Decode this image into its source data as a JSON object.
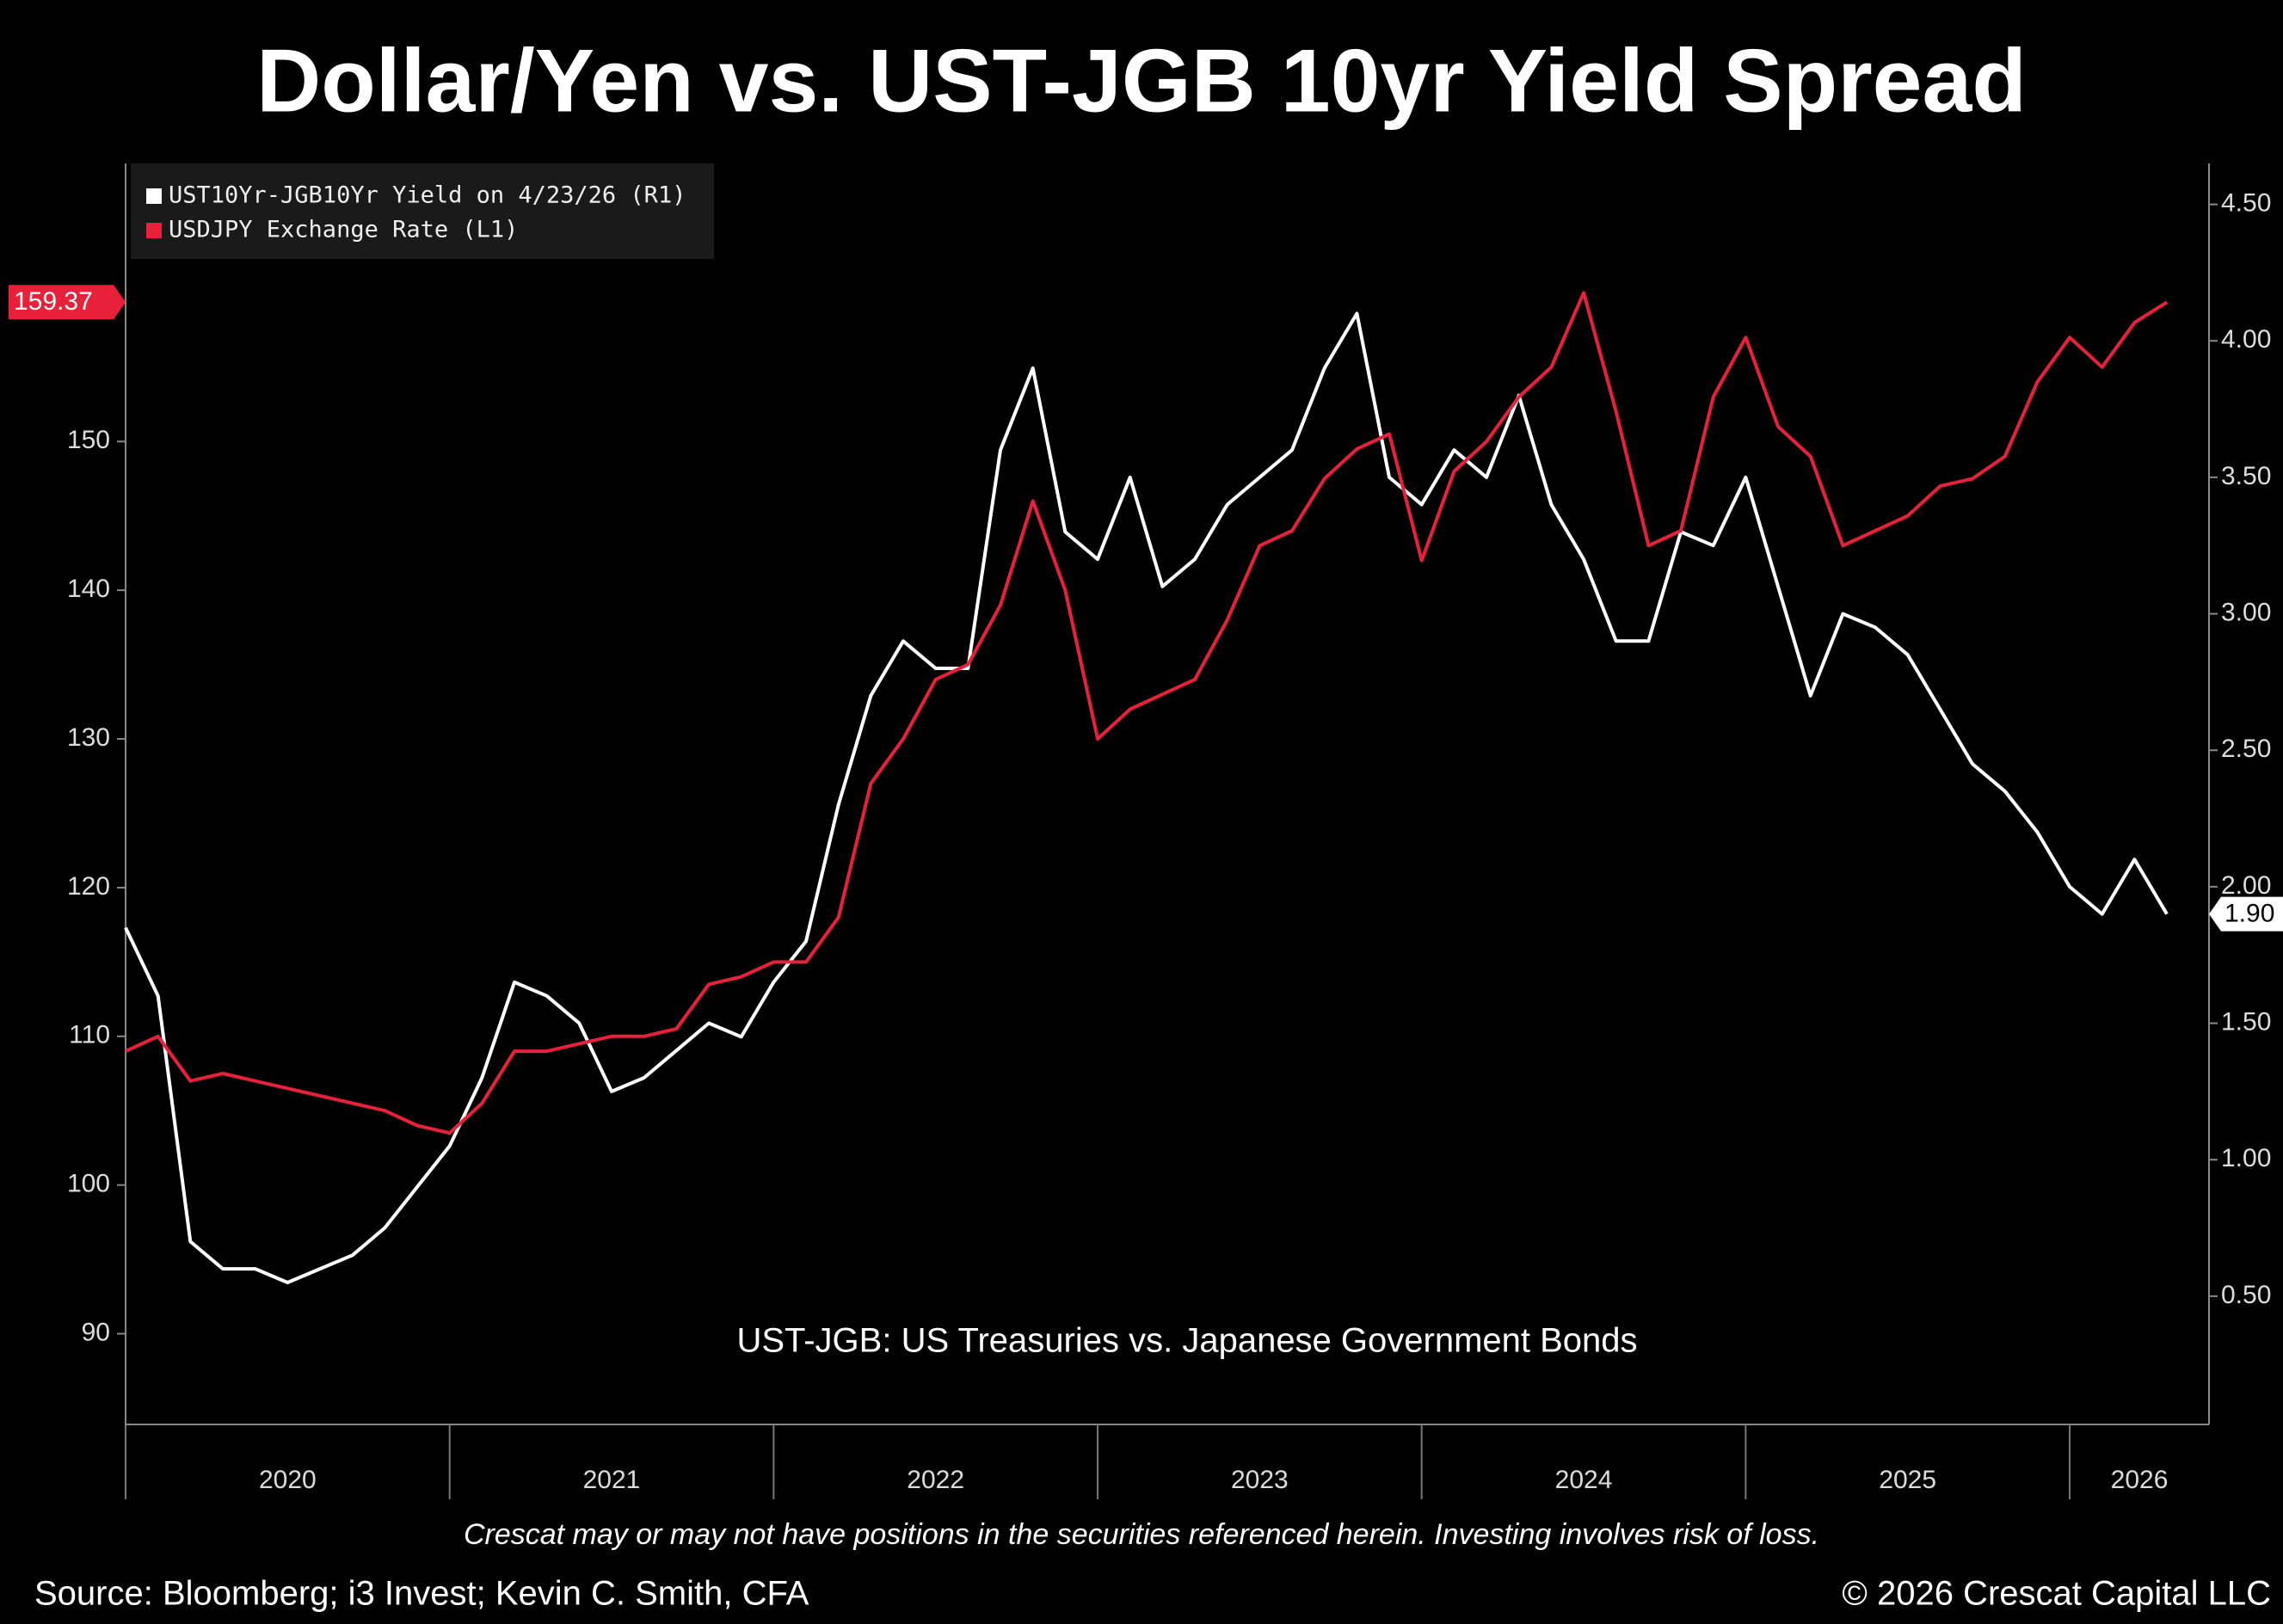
{
  "chart_data": {
    "type": "line",
    "title": "Dollar/Yen vs. UST-JGB 10yr Yield Spread",
    "annotation": "UST-JGB: US Treasuries vs. Japanese Government Bonds",
    "disclaimer": "Crescat may or may not have positions in the securities referenced herein. Investing involves risk of loss.",
    "source": "Source: Bloomberg; i3 Invest; Kevin C. Smith, CFA",
    "copyright": "© 2026 Crescat Capital LLC",
    "x": [
      2020,
      2020.1,
      2020.2,
      2020.3,
      2020.4,
      2020.5,
      2020.6,
      2020.7,
      2020.8,
      2020.9,
      2021,
      2021.1,
      2021.2,
      2021.3,
      2021.4,
      2021.5,
      2021.6,
      2021.7,
      2021.8,
      2021.9,
      2022,
      2022.1,
      2022.2,
      2022.3,
      2022.4,
      2022.5,
      2022.6,
      2022.7,
      2022.8,
      2022.9,
      2023,
      2023.1,
      2023.2,
      2023.3,
      2023.4,
      2023.5,
      2023.6,
      2023.7,
      2023.8,
      2023.9,
      2024,
      2024.1,
      2024.2,
      2024.3,
      2024.4,
      2024.5,
      2024.6,
      2024.7,
      2024.8,
      2024.9,
      2025,
      2025.1,
      2025.2,
      2025.3,
      2025.4,
      2025.5,
      2025.6,
      2025.7,
      2025.8,
      2025.9,
      2026,
      2026.1,
      2026.2,
      2026.3
    ],
    "series": [
      {
        "name": "UST10Yr-JGB10Yr Yield on 4/23/26 (R1)",
        "color": "#ffffff",
        "axis": "y2",
        "last_value_label": "1.90",
        "values": [
          1.85,
          1.6,
          0.7,
          0.6,
          0.6,
          0.55,
          0.6,
          0.65,
          0.75,
          0.9,
          1.05,
          1.3,
          1.65,
          1.6,
          1.5,
          1.25,
          1.3,
          1.4,
          1.5,
          1.45,
          1.65,
          1.8,
          2.3,
          2.7,
          2.9,
          2.8,
          2.8,
          3.6,
          3.9,
          3.3,
          3.2,
          3.5,
          3.1,
          3.2,
          3.4,
          3.5,
          3.6,
          3.9,
          4.1,
          3.5,
          3.4,
          3.6,
          3.5,
          3.8,
          3.4,
          3.2,
          2.9,
          2.9,
          3.3,
          3.25,
          3.5,
          3.1,
          2.7,
          3.0,
          2.95,
          2.85,
          2.65,
          2.45,
          2.35,
          2.2,
          2.0,
          1.9,
          2.1,
          1.9
        ]
      },
      {
        "name": "USDJPY Exchange Rate (L1)",
        "color": "#e8203a",
        "axis": "y",
        "last_value_label": "159.37",
        "values": [
          109,
          110,
          107,
          107.5,
          107,
          106.5,
          106,
          105.5,
          105,
          104,
          103.5,
          105.5,
          109,
          109,
          109.5,
          110,
          110,
          110.5,
          113.5,
          114,
          115,
          115,
          118,
          127,
          130,
          134,
          135,
          139,
          146,
          140,
          130,
          132,
          133,
          134,
          138,
          143,
          144,
          147.5,
          149.5,
          150.5,
          142,
          148,
          150,
          153,
          155,
          160,
          152,
          143,
          144,
          153,
          157,
          151,
          149,
          143,
          144,
          145,
          147,
          147.5,
          149,
          154,
          157,
          155,
          158,
          159.37
        ]
      }
    ],
    "xlim": [
      2020,
      2026.43
    ],
    "xticks": [
      2020,
      2021,
      2022,
      2023,
      2024,
      2025,
      2026
    ],
    "ylim": [
      83.9,
      168.7
    ],
    "yticks": [
      90,
      100,
      110,
      120,
      130,
      140,
      150
    ],
    "y2lim": [
      0.03,
      4.65
    ],
    "y2ticks": [
      {
        "value": 0.5,
        "label": "0.50"
      },
      {
        "value": 1,
        "label": "1.00"
      },
      {
        "value": 1.5,
        "label": "1.50"
      },
      {
        "value": 2,
        "label": "2.00"
      },
      {
        "value": 2.5,
        "label": "2.50"
      },
      {
        "value": 3,
        "label": "3.00"
      },
      {
        "value": 3.5,
        "label": "3.50"
      },
      {
        "value": 4,
        "label": "4.00"
      },
      {
        "value": 4.5,
        "label": "4.50"
      }
    ]
  }
}
